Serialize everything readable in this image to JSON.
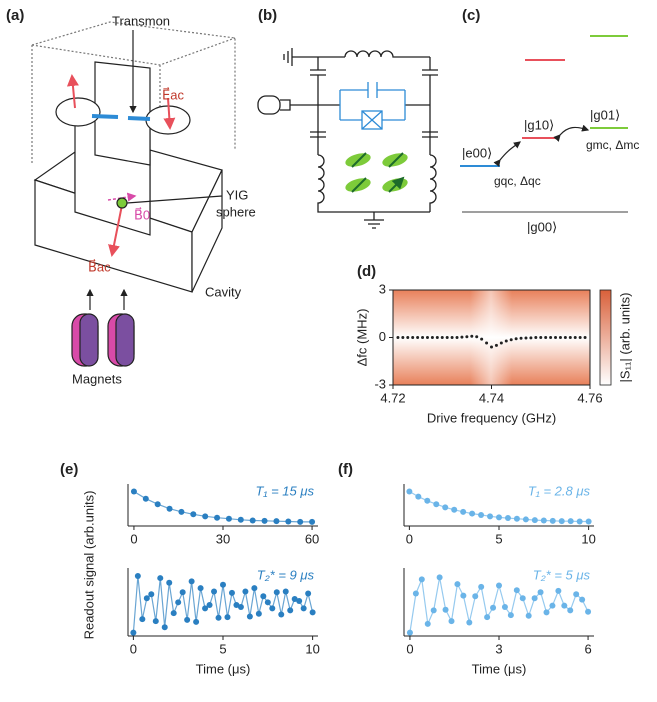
{
  "panel_labels": [
    "(a)",
    "(b)",
    "(c)",
    "(d)",
    "(e)",
    "(f)"
  ],
  "panel_a": {
    "transmon": "Transmon",
    "e_ac": "E⃗ac",
    "b0": "B⃗0",
    "yig": "YIG",
    "sphere": "sphere",
    "b_ac": "B⃗ac",
    "cavity": "Cavity",
    "magnets": "Magnets"
  },
  "panel_c": {
    "e00": "|e00⟩",
    "g10": "|g10⟩",
    "g01": "|g01⟩",
    "g00": "|g00⟩",
    "qc": "gqc, Δqc",
    "mc": "gmc, Δmc"
  },
  "ylabel_ef": "Readout signal (arb.units)",
  "chart_data": [
    {
      "type": "scatter",
      "color": "#222222",
      "x": [
        4.721,
        4.722,
        4.723,
        4.724,
        4.725,
        4.726,
        4.727,
        4.728,
        4.729,
        4.73,
        4.731,
        4.732,
        4.733,
        4.734,
        4.735,
        4.736,
        4.737,
        4.738,
        4.739,
        4.74,
        4.741,
        4.742,
        4.743,
        4.744,
        4.745,
        4.746,
        4.747,
        4.748,
        4.749,
        4.75,
        4.751,
        4.752,
        4.753,
        4.754,
        4.755,
        4.756,
        4.757,
        4.758,
        4.759
      ],
      "values": [
        0,
        0,
        0,
        0,
        0,
        0,
        0,
        0,
        0,
        0,
        0,
        0,
        0,
        0.02,
        0.05,
        0.08,
        0.05,
        -0.1,
        -0.35,
        -0.6,
        -0.5,
        -0.35,
        -0.22,
        -0.14,
        -0.08,
        -0.05,
        -0.03,
        -0.02,
        0,
        0,
        0,
        0,
        0,
        0,
        0,
        0,
        0,
        0,
        0
      ],
      "xlim": [
        4.72,
        4.76
      ],
      "ylim": [
        -3,
        3
      ],
      "xticks": [
        4.72,
        4.74,
        4.76
      ],
      "yticks": [
        -3,
        0,
        3
      ],
      "xlabel": "Drive frequency (GHz)",
      "ylabel": "Δfc (MHz)",
      "colorbar_label": "|S₁₁| (arb. units)"
    },
    {
      "type": "scatter",
      "color": "#2a7fc1",
      "fit_line": true,
      "x": [
        0,
        4,
        8,
        12,
        16,
        20,
        24,
        28,
        32,
        36,
        40,
        44,
        48,
        52,
        56,
        60
      ],
      "values": [
        1.0,
        0.79,
        0.63,
        0.5,
        0.41,
        0.34,
        0.28,
        0.24,
        0.21,
        0.18,
        0.16,
        0.15,
        0.14,
        0.13,
        0.12,
        0.12
      ],
      "xlim": [
        -2,
        62
      ],
      "ylim": [
        0,
        1.1
      ],
      "xticks": [
        0,
        30,
        60
      ],
      "annotation": "T₁ = 15 μs"
    },
    {
      "type": "scatter",
      "color": "#2a7fc1",
      "fit_line": true,
      "x": [
        0,
        0.25,
        0.5,
        0.75,
        1,
        1.25,
        1.5,
        1.75,
        2,
        2.25,
        2.5,
        2.75,
        3,
        3.25,
        3.5,
        3.75,
        4,
        4.25,
        4.5,
        4.75,
        5,
        5.25,
        5.5,
        5.75,
        6,
        6.25,
        6.5,
        6.75,
        7,
        7.25,
        7.5,
        7.75,
        8,
        8.25,
        8.5,
        8.75,
        9,
        9.25,
        9.5,
        9.75,
        10
      ],
      "values": [
        0.05,
        0.89,
        0.25,
        0.56,
        0.62,
        0.22,
        0.86,
        0.13,
        0.79,
        0.34,
        0.5,
        0.65,
        0.24,
        0.81,
        0.21,
        0.71,
        0.41,
        0.46,
        0.66,
        0.27,
        0.76,
        0.28,
        0.64,
        0.46,
        0.43,
        0.66,
        0.29,
        0.71,
        0.33,
        0.59,
        0.5,
        0.41,
        0.65,
        0.32,
        0.66,
        0.38,
        0.55,
        0.52,
        0.41,
        0.63,
        0.35
      ],
      "xlim": [
        -0.3,
        10.3
      ],
      "ylim": [
        0,
        0.95
      ],
      "xticks": [
        0,
        5,
        10
      ],
      "xlabel": "Time (μs)",
      "annotation": "T₂* = 9 μs"
    },
    {
      "type": "scatter",
      "color": "#6ab4e8",
      "fit_line": true,
      "x": [
        0,
        0.5,
        1,
        1.5,
        2,
        2.5,
        3,
        3.5,
        4,
        4.5,
        5,
        5.5,
        6,
        6.5,
        7,
        7.5,
        8,
        8.5,
        9,
        9.5,
        10
      ],
      "values": [
        1.0,
        0.85,
        0.73,
        0.63,
        0.54,
        0.47,
        0.41,
        0.36,
        0.32,
        0.28,
        0.25,
        0.23,
        0.21,
        0.19,
        0.17,
        0.16,
        0.15,
        0.14,
        0.14,
        0.13,
        0.13
      ],
      "xlim": [
        -0.3,
        10.3
      ],
      "ylim": [
        0,
        1.1
      ],
      "xticks": [
        0,
        5,
        10
      ],
      "annotation": "T₁ = 2.8 μs"
    },
    {
      "type": "scatter",
      "color": "#6ab4e8",
      "fit_line": true,
      "x": [
        0,
        0.2,
        0.4,
        0.6,
        0.8,
        1,
        1.2,
        1.4,
        1.6,
        1.8,
        2,
        2.2,
        2.4,
        2.6,
        2.8,
        3,
        3.2,
        3.4,
        3.6,
        3.8,
        4,
        4.2,
        4.4,
        4.6,
        4.8,
        5,
        5.2,
        5.4,
        5.6,
        5.8,
        6
      ],
      "values": [
        0.05,
        0.63,
        0.84,
        0.18,
        0.38,
        0.87,
        0.39,
        0.22,
        0.77,
        0.6,
        0.2,
        0.59,
        0.73,
        0.28,
        0.42,
        0.75,
        0.43,
        0.31,
        0.68,
        0.56,
        0.3,
        0.56,
        0.65,
        0.35,
        0.45,
        0.67,
        0.45,
        0.38,
        0.62,
        0.54,
        0.36
      ],
      "xlim": [
        -0.2,
        6.2
      ],
      "ylim": [
        0,
        0.95
      ],
      "xticks": [
        0,
        3,
        6
      ],
      "xlabel": "Time (μs)",
      "annotation": "T₂* = 5 μs"
    }
  ]
}
